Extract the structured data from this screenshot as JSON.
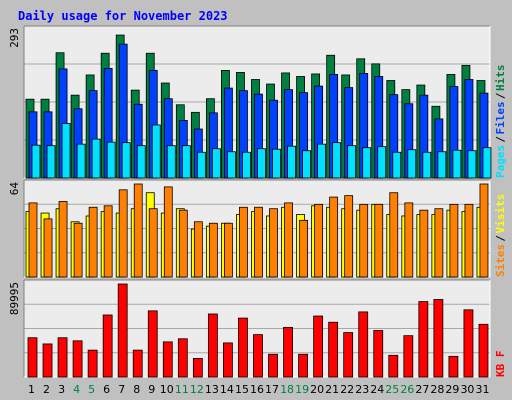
{
  "title": "Daily usage for November 2023",
  "colors": {
    "frame_bg": "#c0c0c0",
    "panel_bg": "#ececec",
    "grid": "#a8a8a8",
    "title": "#0000ff",
    "hits": "#008040",
    "files": "#0040ff",
    "pages": "#00e0ff",
    "visits": "#ffff00",
    "sites": "#ff8000",
    "kbf": "#ff0000",
    "separator": "#000000",
    "weekend": "#008040",
    "weekday": "#000000"
  },
  "chart_data": [
    {
      "type": "bar",
      "panel": "hits-files-pages",
      "legend": [
        {
          "name": "Pages",
          "color": "#00e0ff"
        },
        {
          "name": "Files",
          "color": "#0040ff"
        },
        {
          "name": "Hits",
          "color": "#008040"
        }
      ],
      "ymax_label": "293",
      "ymax": 293,
      "x": [
        1,
        2,
        3,
        4,
        5,
        6,
        7,
        8,
        9,
        10,
        11,
        12,
        13,
        14,
        15,
        16,
        17,
        18,
        19,
        20,
        21,
        22,
        23,
        24,
        25,
        26,
        27,
        28,
        29,
        30,
        31
      ],
      "series": [
        {
          "name": "Hits",
          "values": [
            156,
            156,
            248,
            164,
            204,
            247,
            283,
            174,
            247,
            188,
            145,
            130,
            157,
            213,
            209,
            195,
            186,
            208,
            201,
            206,
            243,
            204,
            236,
            226,
            193,
            175,
            184,
            142,
            205,
            223,
            193
          ]
        },
        {
          "name": "Files",
          "values": [
            131,
            131,
            216,
            137,
            173,
            217,
            265,
            146,
            213,
            157,
            114,
            97,
            129,
            178,
            173,
            166,
            154,
            175,
            169,
            182,
            205,
            179,
            207,
            201,
            165,
            147,
            164,
            117,
            181,
            195,
            168
          ]
        },
        {
          "name": "Pages",
          "values": [
            65,
            64,
            108,
            67,
            77,
            71,
            70,
            64,
            105,
            64,
            64,
            51,
            58,
            52,
            51,
            58,
            57,
            63,
            54,
            67,
            70,
            64,
            60,
            62,
            51,
            56,
            51,
            52,
            55,
            54,
            60
          ]
        }
      ]
    },
    {
      "type": "bar",
      "panel": "visits-sites",
      "legend": [
        {
          "name": "Sites",
          "color": "#ff8000"
        },
        {
          "name": "Visits",
          "color": "#ffff00"
        }
      ],
      "ymax_label": "64",
      "ymax": 64,
      "x": [
        1,
        2,
        3,
        4,
        5,
        6,
        7,
        8,
        9,
        10,
        11,
        12,
        13,
        14,
        15,
        16,
        17,
        18,
        19,
        20,
        21,
        22,
        23,
        24,
        25,
        26,
        27,
        28,
        29,
        30,
        31
      ],
      "series": [
        {
          "name": "Visits",
          "values": [
            45,
            44,
            47,
            38,
            42,
            45,
            44,
            47,
            58,
            44,
            47,
            33,
            35,
            37,
            43,
            45,
            42,
            48,
            43,
            49,
            48,
            47,
            46,
            50,
            43,
            42,
            43,
            43,
            46,
            45,
            48
          ]
        },
        {
          "name": "Sites",
          "values": [
            51,
            40,
            52,
            37,
            48,
            49,
            60,
            64,
            47,
            62,
            46,
            38,
            37,
            37,
            48,
            48,
            47,
            51,
            39,
            50,
            55,
            56,
            50,
            50,
            58,
            51,
            46,
            47,
            50,
            50,
            64
          ]
        }
      ]
    },
    {
      "type": "bar",
      "panel": "kbf",
      "legend": [
        {
          "name": "KB F",
          "color": "#ff0000"
        }
      ],
      "ymax_label": "89995",
      "ymax": 89995,
      "x": [
        1,
        2,
        3,
        4,
        5,
        6,
        7,
        8,
        9,
        10,
        11,
        12,
        13,
        14,
        15,
        16,
        17,
        18,
        19,
        20,
        21,
        22,
        23,
        24,
        25,
        26,
        27,
        28,
        29,
        30,
        31
      ],
      "series": [
        {
          "name": "KB F",
          "values": [
            38000,
            32000,
            38000,
            35000,
            26000,
            60000,
            89995,
            26000,
            64000,
            34000,
            37000,
            18000,
            61000,
            33000,
            57000,
            41000,
            22000,
            48000,
            22000,
            59000,
            53000,
            43000,
            63000,
            45000,
            21000,
            40000,
            73000,
            75000,
            20000,
            65000,
            51000
          ]
        }
      ]
    }
  ],
  "x_labels": [
    "1",
    "2",
    "3",
    "4",
    "5",
    "6",
    "7",
    "8",
    "9",
    "10",
    "11",
    "12",
    "13",
    "14",
    "15",
    "16",
    "17",
    "18",
    "19",
    "20",
    "21",
    "22",
    "23",
    "24",
    "25",
    "26",
    "27",
    "28",
    "29",
    "30",
    "31"
  ],
  "weekend_days": [
    4,
    5,
    11,
    12,
    18,
    19,
    25,
    26
  ]
}
